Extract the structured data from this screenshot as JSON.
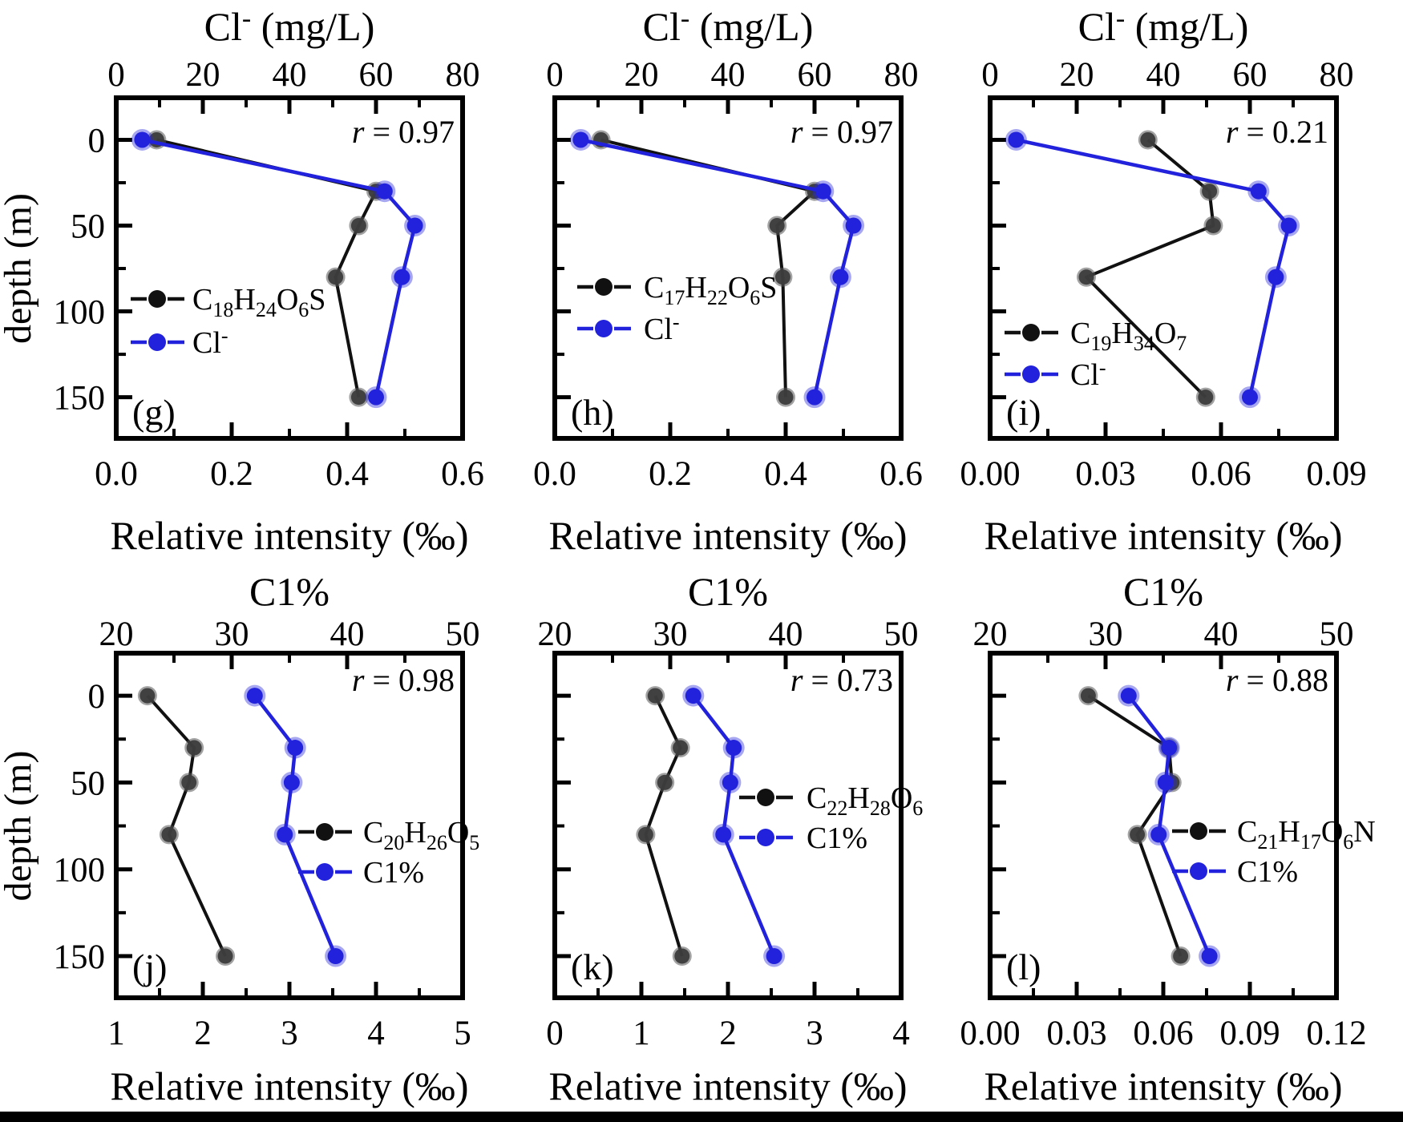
{
  "figure_meta": {
    "background": "#ffffff",
    "bottom_bar_color": "#000000",
    "text_color": "#000000",
    "series_colors": {
      "compound": "#111111",
      "reference": "#2222dd"
    },
    "y_axis_label": "depth (m)",
    "x_bottom_caption": "Relative intensity (‰)",
    "depth_axis": {
      "ticks": [
        "0",
        "50",
        "100",
        "150"
      ],
      "minor": [
        25,
        75,
        125,
        175
      ],
      "range": [
        -24.5,
        174
      ],
      "inverted": true
    }
  },
  "chart_data": [
    {
      "type": "line",
      "panel_label": "(g)",
      "correlation": {
        "text": "r = 0.97",
        "value": 0.97,
        "parts": [
          [
            "r",
            "i"
          ],
          [
            " = 0.97",
            "n"
          ]
        ]
      },
      "title": "Cl- (mg/L)",
      "title_parts": [
        [
          "Cl",
          "n"
        ],
        [
          "-",
          "sup"
        ],
        [
          " (mg/L)",
          "n"
        ]
      ],
      "x_top": {
        "range": [
          0,
          80
        ],
        "ticks": [
          "0",
          "20",
          "40",
          "60",
          "80"
        ],
        "minor": [
          10,
          30,
          50,
          70
        ]
      },
      "x_bottom": {
        "label": "Relative intensity (‰)",
        "range": [
          0,
          0.6
        ],
        "ticks": [
          "0.0",
          "0.2",
          "0.4",
          "0.6"
        ],
        "minor": [
          0.1,
          0.3,
          0.5
        ]
      },
      "ylabel": "depth (m)",
      "show_ylabel": true,
      "depths": [
        0,
        30,
        50,
        80,
        150
      ],
      "series": [
        {
          "name": "C18H24O6S",
          "parts": [
            [
              "C",
              "n"
            ],
            [
              "18",
              "sub"
            ],
            [
              "H",
              "n"
            ],
            [
              "24",
              "sub"
            ],
            [
              "O",
              "n"
            ],
            [
              "6",
              "sub"
            ],
            [
              "S",
              "n"
            ]
          ],
          "axis": "bottom",
          "role": "compound",
          "values": [
            0.07,
            0.45,
            0.42,
            0.38,
            0.42
          ]
        },
        {
          "name": "Cl-",
          "parts": [
            [
              "Cl",
              "n"
            ],
            [
              "-",
              "sup"
            ]
          ],
          "axis": "top",
          "role": "reference",
          "values": [
            6,
            62,
            69,
            66,
            60
          ]
        }
      ]
    },
    {
      "type": "line",
      "panel_label": "(h)",
      "correlation": {
        "text": "r = 0.97",
        "value": 0.97,
        "parts": [
          [
            "r",
            "i"
          ],
          [
            " = 0.97",
            "n"
          ]
        ]
      },
      "title": "Cl- (mg/L)",
      "title_parts": [
        [
          "Cl",
          "n"
        ],
        [
          "-",
          "sup"
        ],
        [
          " (mg/L)",
          "n"
        ]
      ],
      "x_top": {
        "range": [
          0,
          80
        ],
        "ticks": [
          "0",
          "20",
          "40",
          "60",
          "80"
        ],
        "minor": [
          10,
          30,
          50,
          70
        ]
      },
      "x_bottom": {
        "label": "Relative intensity (‰)",
        "range": [
          0,
          0.6
        ],
        "ticks": [
          "0.0",
          "0.2",
          "0.4",
          "0.6"
        ],
        "minor": [
          0.1,
          0.3,
          0.5
        ]
      },
      "ylabel": "depth (m)",
      "show_ylabel": false,
      "depths": [
        0,
        30,
        50,
        80,
        150
      ],
      "series": [
        {
          "name": "C17H22O6S",
          "parts": [
            [
              "C",
              "n"
            ],
            [
              "17",
              "sub"
            ],
            [
              "H",
              "n"
            ],
            [
              "22",
              "sub"
            ],
            [
              "O",
              "n"
            ],
            [
              "6",
              "sub"
            ],
            [
              "S",
              "n"
            ]
          ],
          "axis": "bottom",
          "role": "compound",
          "values": [
            0.08,
            0.45,
            0.385,
            0.395,
            0.4
          ]
        },
        {
          "name": "Cl-",
          "parts": [
            [
              "Cl",
              "n"
            ],
            [
              "-",
              "sup"
            ]
          ],
          "axis": "top",
          "role": "reference",
          "values": [
            6,
            62,
            69,
            66,
            60
          ]
        }
      ]
    },
    {
      "type": "line",
      "panel_label": "(i)",
      "correlation": {
        "text": "r = 0.21",
        "value": 0.21,
        "parts": [
          [
            "r",
            "i"
          ],
          [
            " = 0.21",
            "n"
          ]
        ]
      },
      "title": "Cl- (mg/L)",
      "title_parts": [
        [
          "Cl",
          "n"
        ],
        [
          "-",
          "sup"
        ],
        [
          " (mg/L)",
          "n"
        ]
      ],
      "x_top": {
        "range": [
          0,
          80
        ],
        "ticks": [
          "0",
          "20",
          "40",
          "60",
          "80"
        ],
        "minor": [
          10,
          30,
          50,
          70
        ]
      },
      "x_bottom": {
        "label": "Relative intensity (‰)",
        "range": [
          0,
          0.09
        ],
        "ticks": [
          "0.00",
          "0.03",
          "0.06",
          "0.09"
        ],
        "minor": [
          0.015,
          0.045,
          0.075
        ]
      },
      "ylabel": "depth (m)",
      "show_ylabel": false,
      "depths": [
        0,
        30,
        50,
        80,
        150
      ],
      "series": [
        {
          "name": "C19H34O7",
          "parts": [
            [
              "C",
              "n"
            ],
            [
              "19",
              "sub"
            ],
            [
              "H",
              "n"
            ],
            [
              "34",
              "sub"
            ],
            [
              "O",
              "n"
            ],
            [
              "7",
              "sub"
            ]
          ],
          "axis": "bottom",
          "role": "compound",
          "values": [
            0.041,
            0.057,
            0.058,
            0.025,
            0.056
          ]
        },
        {
          "name": "Cl-",
          "parts": [
            [
              "Cl",
              "n"
            ],
            [
              "-",
              "sup"
            ]
          ],
          "axis": "top",
          "role": "reference",
          "values": [
            6,
            62,
            69,
            66,
            60
          ]
        }
      ]
    },
    {
      "type": "line",
      "panel_label": "(j)",
      "correlation": {
        "text": "r = 0.98",
        "value": 0.98,
        "parts": [
          [
            "r",
            "i"
          ],
          [
            " = 0.98",
            "n"
          ]
        ]
      },
      "title": "C1%",
      "title_parts": [
        [
          "C1%",
          "n"
        ]
      ],
      "x_top": {
        "range": [
          20,
          50
        ],
        "ticks": [
          "20",
          "30",
          "40",
          "50"
        ],
        "minor": [
          25,
          35,
          45
        ]
      },
      "x_bottom": {
        "label": "Relative intensity (‰)",
        "range": [
          1,
          5
        ],
        "ticks": [
          "1",
          "2",
          "3",
          "4",
          "5"
        ],
        "minor": [
          1.5,
          2.5,
          3.5,
          4.5
        ]
      },
      "ylabel": "depth (m)",
      "show_ylabel": true,
      "depths": [
        0,
        30,
        50,
        80,
        150
      ],
      "series": [
        {
          "name": "C20H26O5",
          "parts": [
            [
              "C",
              "n"
            ],
            [
              "20",
              "sub"
            ],
            [
              "H",
              "n"
            ],
            [
              "26",
              "sub"
            ],
            [
              "O",
              "n"
            ],
            [
              "5",
              "sub"
            ]
          ],
          "axis": "bottom",
          "role": "compound",
          "values": [
            1.36,
            1.9,
            1.84,
            1.61,
            2.26
          ]
        },
        {
          "name": "C1%",
          "parts": [
            [
              "C1%",
              "n"
            ]
          ],
          "axis": "top",
          "role": "reference",
          "values": [
            32,
            35.5,
            35.2,
            34.6,
            39
          ]
        }
      ]
    },
    {
      "type": "line",
      "panel_label": "(k)",
      "correlation": {
        "text": "r = 0.73",
        "value": 0.73,
        "parts": [
          [
            "r",
            "i"
          ],
          [
            " = 0.73",
            "n"
          ]
        ]
      },
      "title": "C1%",
      "title_parts": [
        [
          "C1%",
          "n"
        ]
      ],
      "x_top": {
        "range": [
          20,
          50
        ],
        "ticks": [
          "20",
          "30",
          "40",
          "50"
        ],
        "minor": [
          25,
          35,
          45
        ]
      },
      "x_bottom": {
        "label": "Relative intensity (‰)",
        "range": [
          0,
          4
        ],
        "ticks": [
          "0",
          "1",
          "2",
          "3",
          "4"
        ],
        "minor": [
          0.5,
          1.5,
          2.5,
          3.5
        ]
      },
      "ylabel": "depth (m)",
      "show_ylabel": false,
      "depths": [
        0,
        30,
        50,
        80,
        150
      ],
      "series": [
        {
          "name": "C22H28O6",
          "parts": [
            [
              "C",
              "n"
            ],
            [
              "22",
              "sub"
            ],
            [
              "H",
              "n"
            ],
            [
              "28",
              "sub"
            ],
            [
              "O",
              "n"
            ],
            [
              "6",
              "sub"
            ]
          ],
          "axis": "bottom",
          "role": "compound",
          "values": [
            1.16,
            1.45,
            1.27,
            1.05,
            1.47
          ]
        },
        {
          "name": "C1%",
          "parts": [
            [
              "C1%",
              "n"
            ]
          ],
          "axis": "top",
          "role": "reference",
          "values": [
            32,
            35.5,
            35.2,
            34.6,
            39
          ]
        }
      ]
    },
    {
      "type": "line",
      "panel_label": "(l)",
      "correlation": {
        "text": "r = 0.88",
        "value": 0.88,
        "parts": [
          [
            "r",
            "i"
          ],
          [
            " = 0.88",
            "n"
          ]
        ]
      },
      "title": "C1%",
      "title_parts": [
        [
          "C1%",
          "n"
        ]
      ],
      "x_top": {
        "range": [
          20,
          50
        ],
        "ticks": [
          "20",
          "30",
          "40",
          "50"
        ],
        "minor": [
          25,
          35,
          45
        ]
      },
      "x_bottom": {
        "label": "Relative intensity (‰)",
        "range": [
          0,
          0.12
        ],
        "ticks": [
          "0.00",
          "0.03",
          "0.06",
          "0.09",
          "0.12"
        ],
        "minor": [
          0.015,
          0.045,
          0.075,
          0.105
        ]
      },
      "ylabel": "depth (m)",
      "show_ylabel": false,
      "depths": [
        0,
        30,
        50,
        80,
        150
      ],
      "series": [
        {
          "name": "C21H17O6N",
          "parts": [
            [
              "C",
              "n"
            ],
            [
              "21",
              "sub"
            ],
            [
              "H",
              "n"
            ],
            [
              "17",
              "sub"
            ],
            [
              "O",
              "n"
            ],
            [
              "6",
              "sub"
            ],
            [
              "N",
              "n"
            ]
          ],
          "axis": "bottom",
          "role": "compound",
          "values": [
            0.034,
            0.062,
            0.063,
            0.051,
            0.066
          ]
        },
        {
          "name": "C1%",
          "parts": [
            [
              "C1%",
              "n"
            ]
          ],
          "axis": "top",
          "role": "reference",
          "values": [
            32,
            35.5,
            35.2,
            34.6,
            39
          ]
        }
      ]
    }
  ]
}
